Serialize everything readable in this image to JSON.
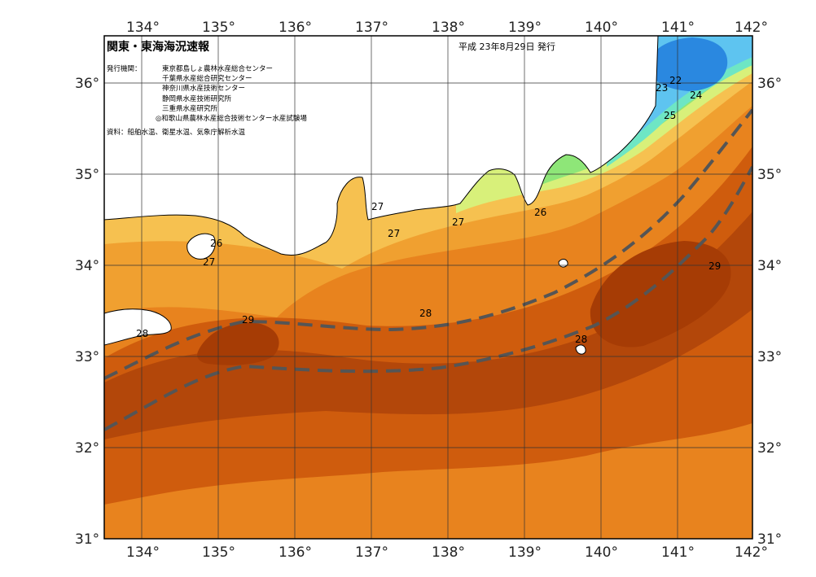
{
  "header": {
    "title": "関東・東海海況速報",
    "date": "平成 23年8月29日 発行"
  },
  "issuers": {
    "label": "発行機関：",
    "items": [
      "東京都島しょ農林水産総合センター",
      "千葉県水産総合研究センター",
      "神奈川県水産技術センター",
      "静岡県水産技術研究所",
      "三重県水産研究所",
      "◎和歌山県農林水産総合技術センター水産試験場"
    ]
  },
  "source": "資料：船舶水温、衛星水温、気象庁解析水温",
  "axes": {
    "lon": [
      "134°",
      "135°",
      "136°",
      "137°",
      "138°",
      "139°",
      "140°",
      "141°",
      "142°"
    ],
    "lat": [
      "36°",
      "35°",
      "34°",
      "33°",
      "32°",
      "31°"
    ]
  },
  "contour_labels": [
    "22",
    "23",
    "24",
    "25",
    "26",
    "26",
    "27",
    "27",
    "27",
    "27",
    "28",
    "28",
    "28",
    "29",
    "29"
  ],
  "colors": {
    "t22": "#2a88e0",
    "t23": "#5ec4f0",
    "t24": "#6ee6c4",
    "t25": "#8ee678",
    "t26": "#d8f07a",
    "t27": "#f6c150",
    "t28": "#e8831e",
    "t29": "#c24e08",
    "t30": "#a63c05",
    "land": "#ffffff",
    "kuroshio": "#555555"
  }
}
